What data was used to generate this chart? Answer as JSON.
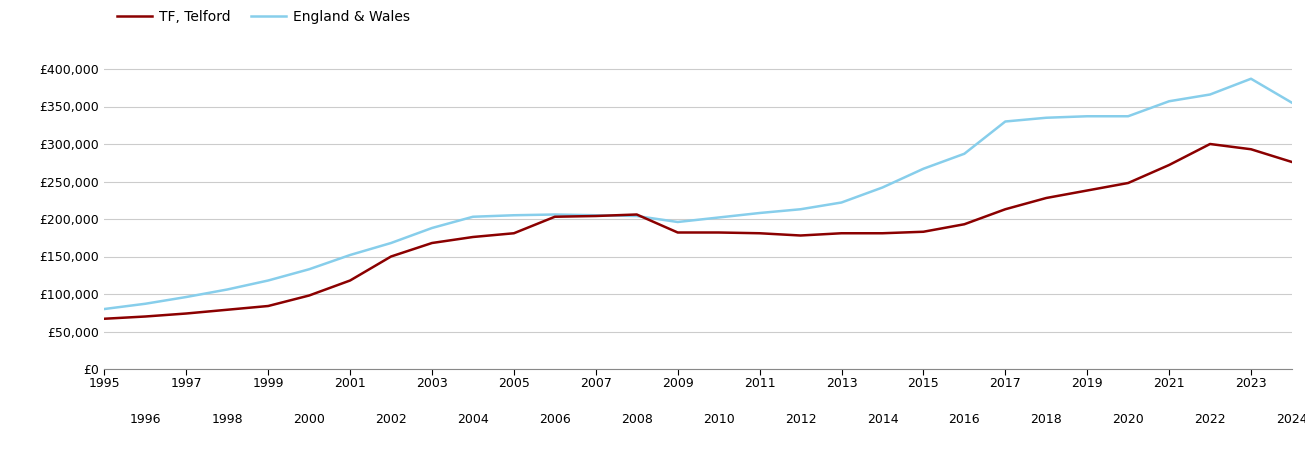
{
  "years": [
    1995,
    1996,
    1997,
    1998,
    1999,
    2000,
    2001,
    2002,
    2003,
    2004,
    2005,
    2006,
    2007,
    2008,
    2009,
    2010,
    2011,
    2012,
    2013,
    2014,
    2015,
    2016,
    2017,
    2018,
    2019,
    2020,
    2021,
    2022,
    2023,
    2024
  ],
  "telford": [
    67000,
    70000,
    74000,
    79000,
    84000,
    98000,
    118000,
    150000,
    168000,
    176000,
    181000,
    203000,
    204000,
    206000,
    182000,
    182000,
    181000,
    178000,
    181000,
    181000,
    183000,
    193000,
    213000,
    228000,
    238000,
    248000,
    272000,
    300000,
    293000,
    276000
  ],
  "england_wales": [
    80000,
    87000,
    96000,
    106000,
    118000,
    133000,
    152000,
    168000,
    188000,
    203000,
    205000,
    206000,
    205000,
    204000,
    196000,
    202000,
    208000,
    213000,
    222000,
    242000,
    267000,
    287000,
    330000,
    335000,
    337000,
    337000,
    357000,
    366000,
    387000,
    355000
  ],
  "telford_color": "#8B0000",
  "england_wales_color": "#87CEEB",
  "background_color": "#ffffff",
  "grid_color": "#cccccc",
  "ylim": [
    0,
    420000
  ],
  "yticks": [
    0,
    50000,
    100000,
    150000,
    200000,
    250000,
    300000,
    350000,
    400000
  ],
  "legend_label_telford": "TF, Telford",
  "legend_label_ew": "England & Wales",
  "line_width": 1.8
}
